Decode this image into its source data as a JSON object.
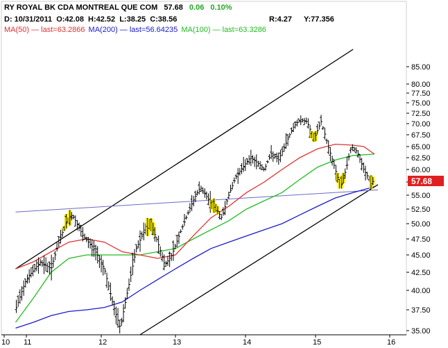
{
  "chart_data": {
    "type": "ohlc",
    "title": {
      "symbol": "RY ROYAL BK CDA MONTREAL QUE COM",
      "last": "57.68",
      "change": "0.06",
      "change_pct": "0.10%"
    },
    "bar_info": {
      "date": "D: 10/31/2011",
      "open": "O:42.08",
      "high": "H:42.52",
      "low": "L:38.25",
      "close": "C:38.56",
      "r": "R:4.27",
      "y": "Y:77.356"
    },
    "legend": [
      {
        "text": "MA(50) — last=63.2866",
        "color": "#e03030"
      },
      {
        "text": "MA(200) — last=56.64235",
        "color": "#1a1acc"
      },
      {
        "text": "MA(100) — last=63.3286",
        "color": "#22bb22"
      }
    ],
    "last_price_label": "57.68",
    "y_ticks": [
      "85.00",
      "80.00",
      "77.50",
      "75.00",
      "72.50",
      "70.00",
      "67.50",
      "65.00",
      "62.50",
      "60.00",
      "57.50",
      "55.00",
      "52.50",
      "50.00",
      "47.50",
      "45.00",
      "42.50",
      "40.00",
      "37.50",
      "35.00"
    ],
    "x_ticks": [
      "10",
      "11",
      "12",
      "13",
      "14",
      "15",
      "16"
    ],
    "series": {
      "price": [
        {
          "x": 0.0,
          "y": 37.5
        },
        {
          "x": 0.3,
          "y": 41.5
        },
        {
          "x": 0.7,
          "y": 44.0
        },
        {
          "x": 1.0,
          "y": 43.0
        },
        {
          "x": 1.25,
          "y": 47.5
        },
        {
          "x": 1.45,
          "y": 50.5
        },
        {
          "x": 1.6,
          "y": 51.5
        },
        {
          "x": 1.9,
          "y": 48.0
        },
        {
          "x": 2.2,
          "y": 46.0
        },
        {
          "x": 2.5,
          "y": 43.0
        },
        {
          "x": 2.75,
          "y": 38.0
        },
        {
          "x": 2.95,
          "y": 35.3
        },
        {
          "x": 3.2,
          "y": 41.0
        },
        {
          "x": 3.4,
          "y": 46.0
        },
        {
          "x": 3.6,
          "y": 48.5
        },
        {
          "x": 3.8,
          "y": 50.0
        },
        {
          "x": 4.0,
          "y": 47.0
        },
        {
          "x": 4.2,
          "y": 43.5
        },
        {
          "x": 4.4,
          "y": 45.0
        },
        {
          "x": 4.6,
          "y": 48.0
        },
        {
          "x": 4.8,
          "y": 51.0
        },
        {
          "x": 5.0,
          "y": 54.0
        },
        {
          "x": 5.2,
          "y": 56.5
        },
        {
          "x": 5.4,
          "y": 54.5
        },
        {
          "x": 5.6,
          "y": 53.0
        },
        {
          "x": 5.8,
          "y": 51.0
        },
        {
          "x": 6.0,
          "y": 55.0
        },
        {
          "x": 6.2,
          "y": 58.5
        },
        {
          "x": 6.4,
          "y": 60.5
        },
        {
          "x": 6.6,
          "y": 62.5
        },
        {
          "x": 6.8,
          "y": 61.5
        },
        {
          "x": 7.0,
          "y": 60.0
        },
        {
          "x": 7.2,
          "y": 63.5
        },
        {
          "x": 7.4,
          "y": 62.0
        },
        {
          "x": 7.6,
          "y": 65.5
        },
        {
          "x": 7.8,
          "y": 69.0
        },
        {
          "x": 8.0,
          "y": 71.0
        },
        {
          "x": 8.2,
          "y": 70.5
        },
        {
          "x": 8.4,
          "y": 66.5
        },
        {
          "x": 8.6,
          "y": 70.5
        },
        {
          "x": 8.8,
          "y": 65.0
        },
        {
          "x": 9.0,
          "y": 60.0
        },
        {
          "x": 9.15,
          "y": 56.5
        },
        {
          "x": 9.3,
          "y": 60.0
        },
        {
          "x": 9.45,
          "y": 65.0
        },
        {
          "x": 9.6,
          "y": 64.0
        },
        {
          "x": 9.8,
          "y": 60.0
        },
        {
          "x": 10.0,
          "y": 57.5
        },
        {
          "x": 10.1,
          "y": 57.7
        }
      ],
      "ma50": [
        {
          "x": 0.0,
          "y": 43.0
        },
        {
          "x": 0.5,
          "y": 44.0
        },
        {
          "x": 1.0,
          "y": 45.5
        },
        {
          "x": 1.5,
          "y": 47.0
        },
        {
          "x": 2.0,
          "y": 47.5
        },
        {
          "x": 2.5,
          "y": 47.0
        },
        {
          "x": 3.0,
          "y": 45.5
        },
        {
          "x": 3.5,
          "y": 45.0
        },
        {
          "x": 4.0,
          "y": 44.5
        },
        {
          "x": 4.5,
          "y": 45.0
        },
        {
          "x": 5.0,
          "y": 48.0
        },
        {
          "x": 5.5,
          "y": 51.0
        },
        {
          "x": 6.0,
          "y": 53.0
        },
        {
          "x": 6.5,
          "y": 55.5
        },
        {
          "x": 7.0,
          "y": 57.5
        },
        {
          "x": 7.5,
          "y": 60.0
        },
        {
          "x": 8.0,
          "y": 62.5
        },
        {
          "x": 8.5,
          "y": 64.5
        },
        {
          "x": 9.0,
          "y": 65.5
        },
        {
          "x": 9.5,
          "y": 65.3
        },
        {
          "x": 9.8,
          "y": 65.0
        },
        {
          "x": 10.1,
          "y": 63.3
        }
      ],
      "ma100": [
        {
          "x": 0.0,
          "y": 36.0
        },
        {
          "x": 0.5,
          "y": 39.0
        },
        {
          "x": 1.0,
          "y": 42.5
        },
        {
          "x": 1.5,
          "y": 44.5
        },
        {
          "x": 2.0,
          "y": 45.0
        },
        {
          "x": 2.5,
          "y": 45.0
        },
        {
          "x": 3.0,
          "y": 45.0
        },
        {
          "x": 3.5,
          "y": 45.0
        },
        {
          "x": 4.0,
          "y": 45.5
        },
        {
          "x": 4.5,
          "y": 46.0
        },
        {
          "x": 5.0,
          "y": 47.5
        },
        {
          "x": 5.5,
          "y": 49.0
        },
        {
          "x": 6.0,
          "y": 50.5
        },
        {
          "x": 6.5,
          "y": 52.5
        },
        {
          "x": 7.0,
          "y": 54.0
        },
        {
          "x": 7.5,
          "y": 55.5
        },
        {
          "x": 8.0,
          "y": 58.0
        },
        {
          "x": 8.5,
          "y": 60.5
        },
        {
          "x": 9.0,
          "y": 62.0
        },
        {
          "x": 9.5,
          "y": 63.0
        },
        {
          "x": 10.1,
          "y": 63.3
        }
      ],
      "ma200": [
        {
          "x": 0.0,
          "y": 35.3
        },
        {
          "x": 0.5,
          "y": 36.0
        },
        {
          "x": 1.0,
          "y": 36.8
        },
        {
          "x": 1.5,
          "y": 37.3
        },
        {
          "x": 2.0,
          "y": 37.5
        },
        {
          "x": 2.5,
          "y": 37.8
        },
        {
          "x": 3.0,
          "y": 38.5
        },
        {
          "x": 3.5,
          "y": 40.0
        },
        {
          "x": 4.0,
          "y": 41.5
        },
        {
          "x": 4.5,
          "y": 43.0
        },
        {
          "x": 5.0,
          "y": 44.5
        },
        {
          "x": 5.5,
          "y": 46.0
        },
        {
          "x": 6.0,
          "y": 47.0
        },
        {
          "x": 6.5,
          "y": 48.0
        },
        {
          "x": 7.0,
          "y": 49.0
        },
        {
          "x": 7.5,
          "y": 50.0
        },
        {
          "x": 8.0,
          "y": 51.5
        },
        {
          "x": 8.5,
          "y": 53.0
        },
        {
          "x": 9.0,
          "y": 54.5
        },
        {
          "x": 9.5,
          "y": 55.5
        },
        {
          "x": 10.1,
          "y": 56.6
        }
      ]
    },
    "trendlines": [
      {
        "name": "channel-upper",
        "color": "#000000",
        "from": {
          "x": 0.0,
          "y": 43.0
        },
        "to": {
          "x": 9.5,
          "y": 90.0
        }
      },
      {
        "name": "channel-lower",
        "color": "#000000",
        "from": {
          "x": 3.5,
          "y": 34.5
        },
        "to": {
          "x": 10.2,
          "y": 57.0
        }
      },
      {
        "name": "support-line",
        "color": "#6a6ac8",
        "from": {
          "x": 0.0,
          "y": 52.0
        },
        "to": {
          "x": 10.2,
          "y": 56.0
        }
      }
    ],
    "ylim": [
      34,
      90
    ],
    "xlim": [
      -0.4,
      11.0
    ],
    "colors": {
      "price": "#000000",
      "highlight_bar": "#f2e600",
      "ma50": "#e03030",
      "ma100": "#22bb22",
      "ma200": "#1a1acc",
      "last_label_bg": "#e02020",
      "change_text": "#22aa22",
      "grid": "#c8c8c8"
    }
  }
}
